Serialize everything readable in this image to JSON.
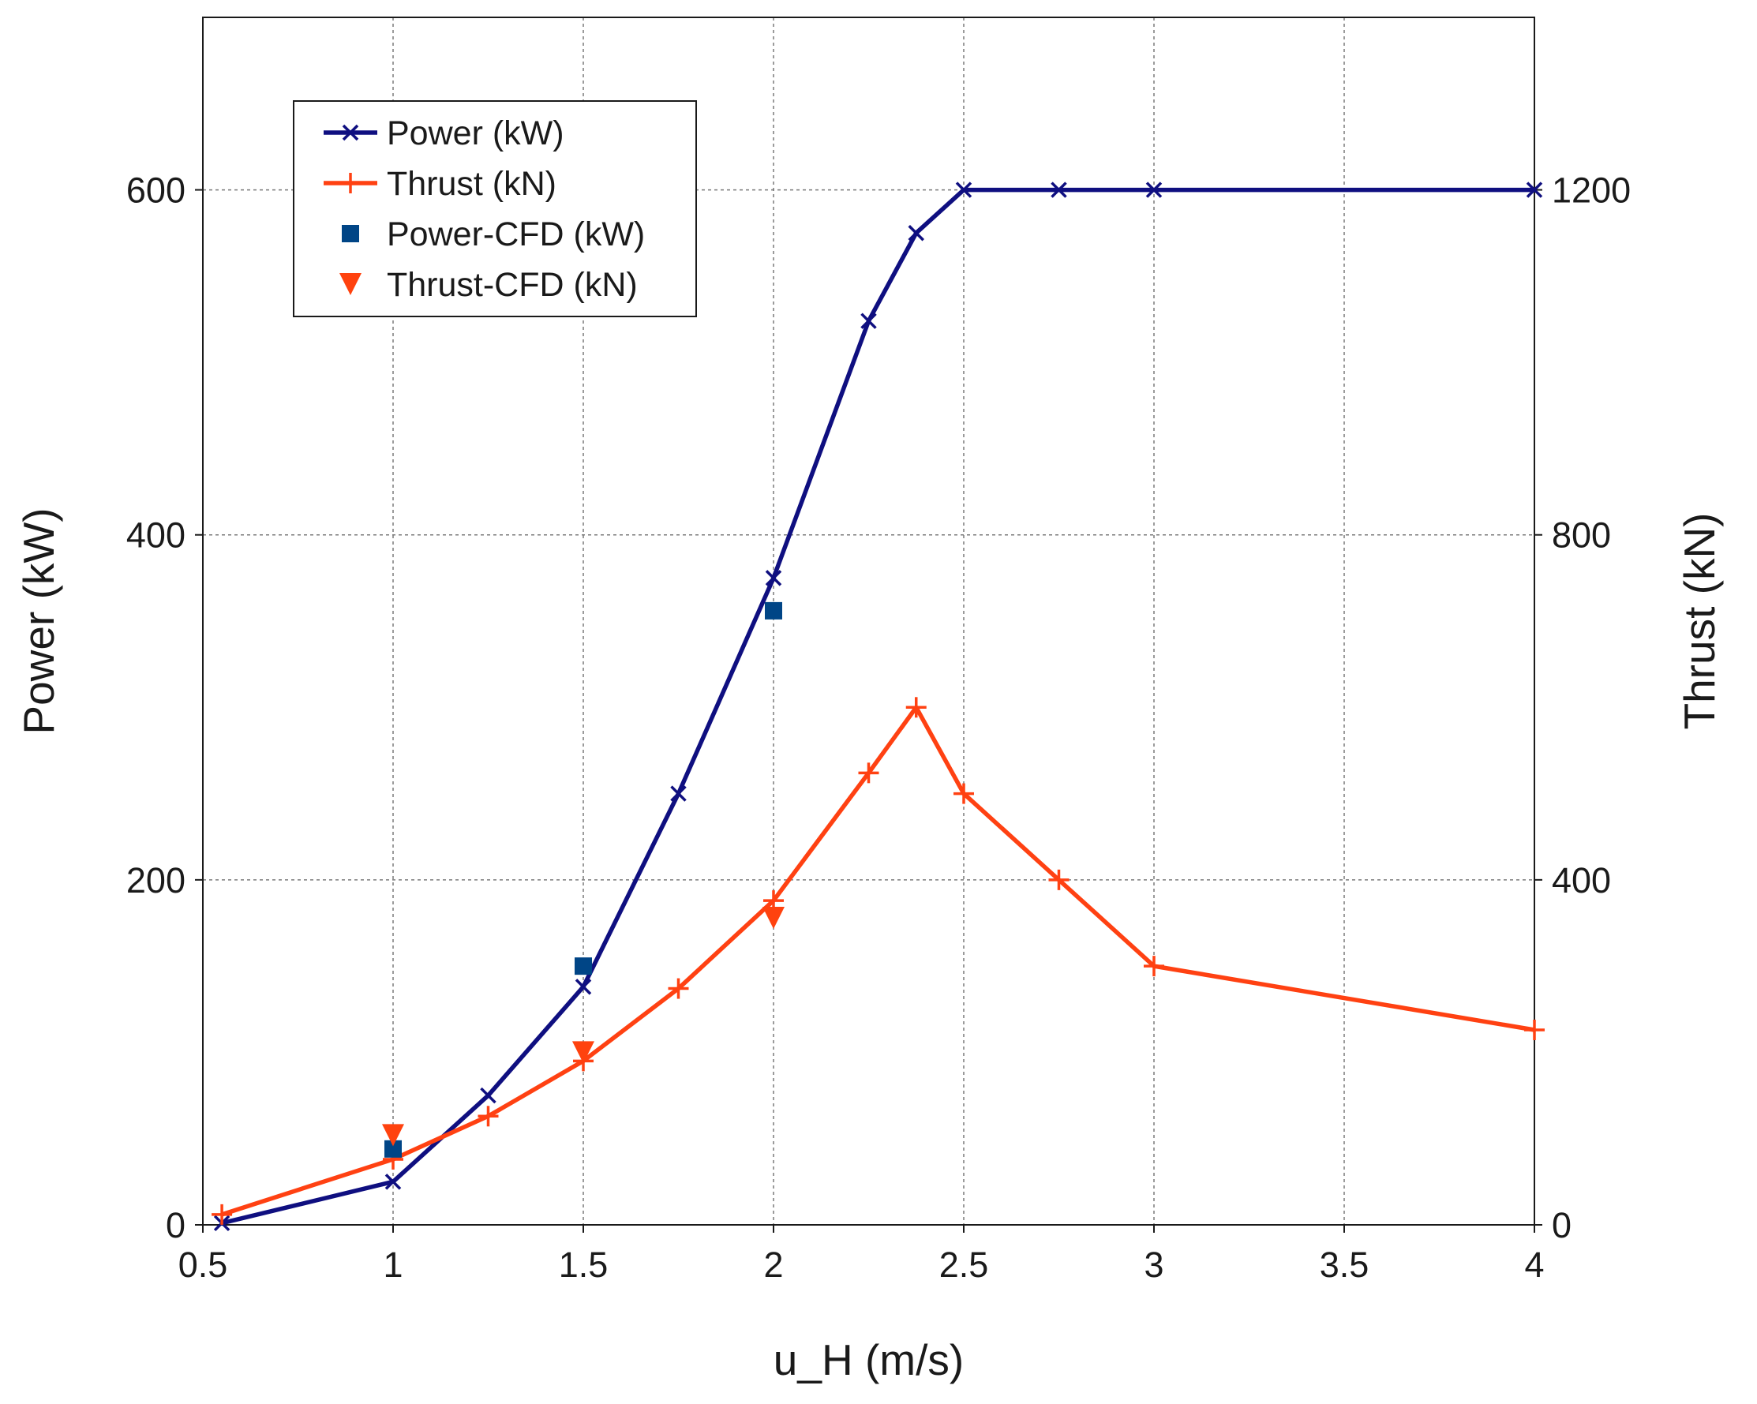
{
  "chart_data": {
    "type": "line",
    "title": "",
    "xlabel": "u_H (m/s)",
    "ylabel": "Power (kW)",
    "y2label": "Thrust (kN)",
    "xlim": [
      0.5,
      4
    ],
    "ylim": [
      0,
      700
    ],
    "y2lim": [
      0,
      1400
    ],
    "xticks": [
      0.5,
      1,
      1.5,
      2,
      2.5,
      3,
      3.5,
      4
    ],
    "xtick_labels": [
      "0.5",
      "1",
      "1.5",
      "2",
      "2.5",
      "3",
      "3.5",
      "4"
    ],
    "yticks": [
      0,
      200,
      400,
      600
    ],
    "ytick_labels": [
      "0",
      "200",
      "400",
      "600"
    ],
    "y2ticks": [
      0,
      400,
      800,
      1200
    ],
    "y2tick_labels": [
      "0",
      "400",
      "800",
      "1200"
    ],
    "grid": true,
    "legend_position": "top-left",
    "series": [
      {
        "name": "Power (kW)",
        "axis": "left",
        "style": "line",
        "marker": "x",
        "color": "#0f0f80",
        "x": [
          0.55,
          1.0,
          1.25,
          1.5,
          1.75,
          2.0,
          2.25,
          2.375,
          2.5,
          2.75,
          3.0,
          4.0
        ],
        "values": [
          1,
          25,
          75,
          138,
          250,
          375,
          524,
          575,
          600,
          600,
          600,
          600
        ]
      },
      {
        "name": "Thrust (kN)",
        "axis": "right",
        "style": "line",
        "marker": "plus",
        "color": "#ff4112",
        "x": [
          0.55,
          1.0,
          1.25,
          1.5,
          1.75,
          2.0,
          2.25,
          2.375,
          2.5,
          2.75,
          3.0,
          4.0
        ],
        "values": [
          12,
          76,
          126,
          190,
          274,
          376,
          524,
          600,
          500,
          400,
          300,
          226
        ]
      },
      {
        "name": "Power-CFD (kW)",
        "axis": "left",
        "style": "marker",
        "marker": "square",
        "color": "#004586",
        "x": [
          1.0,
          1.5,
          2.0
        ],
        "values": [
          44,
          150,
          356
        ]
      },
      {
        "name": "Thrust-CFD (kN)",
        "axis": "right",
        "style": "marker",
        "marker": "triangle-down",
        "color": "#ff420e",
        "x": [
          1.0,
          1.5,
          2.0
        ],
        "values": [
          104,
          200,
          356
        ]
      }
    ]
  }
}
